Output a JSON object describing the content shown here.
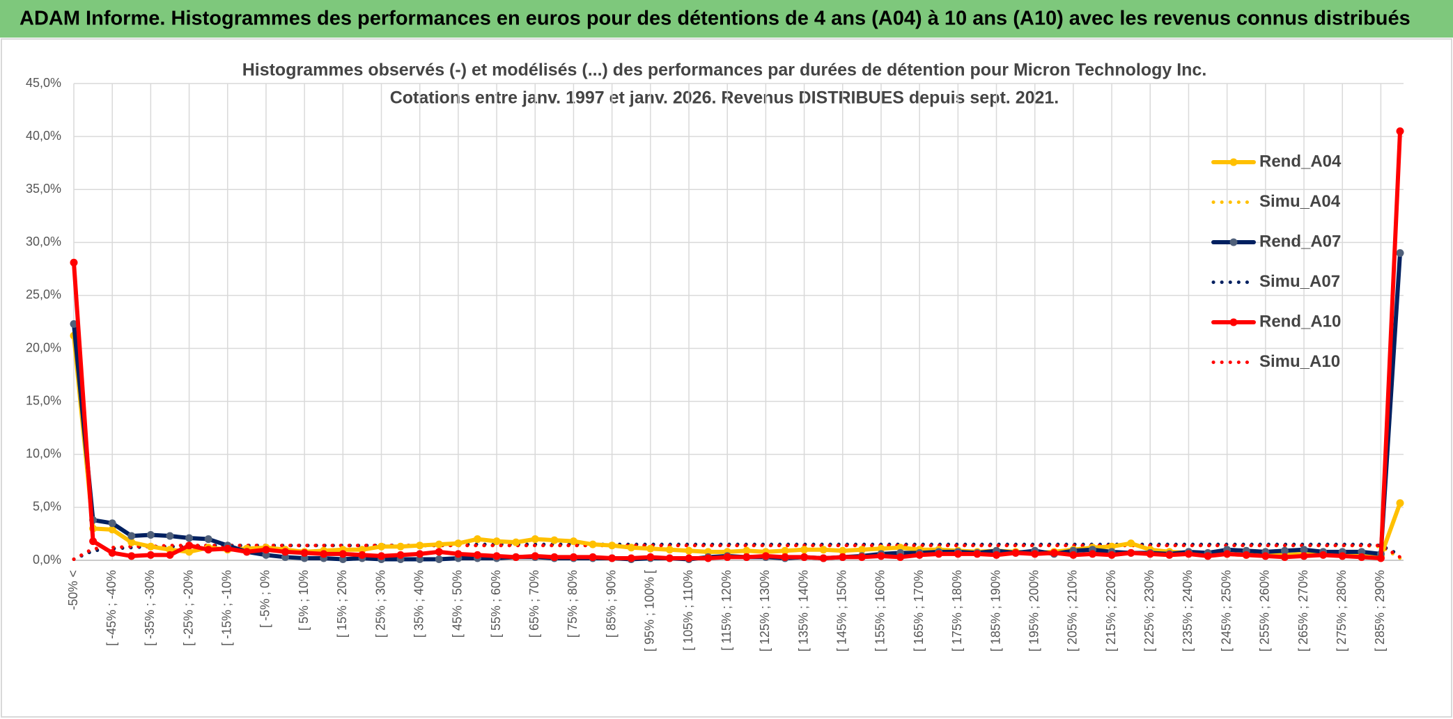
{
  "header": {
    "title": "ADAM Informe. Histogrammes des performances en euros pour des détentions de 4 ans (A04) à 10 ans (A10) avec les revenus connus distribués"
  },
  "chart_data": {
    "type": "line",
    "title": [
      "Histogrammes observés (-) et modélisés (...) des performances par durées de détention pour Micron Technology Inc.",
      "Cotations entre janv. 1997 et janv. 2026. Revenus DISTRIBUES depuis sept. 2021."
    ],
    "categories": [
      "-50% <",
      null,
      "[ -45% ; -40%",
      null,
      "[ -35% ; -30%",
      null,
      "[ -25% ; -20%",
      null,
      "[ -15% ; -10%",
      null,
      "[ -5% ; 0%",
      null,
      "[ 5% ; 10%",
      null,
      "[ 15% ; 20%",
      null,
      "[ 25% ; 30%",
      null,
      "[ 35% ; 40%",
      null,
      "[ 45% ; 50%",
      null,
      "[ 55% ; 60%",
      null,
      "[ 65% ; 70%",
      null,
      "[ 75% ; 80%",
      null,
      "[ 85% ; 90%",
      null,
      "[ 95% ; 100% [",
      null,
      "[ 105% ; 110%",
      null,
      "[ 115% ; 120%",
      null,
      "[ 125% ; 130%",
      null,
      "[ 135% ; 140%",
      null,
      "[ 145% ; 150%",
      null,
      "[ 155% ; 160%",
      null,
      "[ 165% ; 170%",
      null,
      "[ 175% ; 180%",
      null,
      "[ 185% ; 190%",
      null,
      "[ 195% ; 200%",
      null,
      "[ 205% ; 210%",
      null,
      "[ 215% ; 220%",
      null,
      "[ 225% ; 230%",
      null,
      "[ 235% ; 240%",
      null,
      "[ 245% ; 250%",
      null,
      "[ 255% ; 260%",
      null,
      "[ 265% ; 270%",
      null,
      "[ 275% ; 280%",
      null,
      "[ 285% ; 290%",
      null
    ],
    "series": [
      {
        "name": "Rend_A04",
        "color": "#ffc000",
        "style": "solid",
        "values": [
          21.2,
          3.0,
          2.9,
          1.7,
          1.3,
          1.0,
          0.8,
          1.2,
          1.0,
          1.1,
          1.2,
          1.0,
          0.8,
          0.9,
          1.0,
          1.0,
          1.3,
          1.3,
          1.4,
          1.5,
          1.6,
          2.0,
          1.8,
          1.7,
          2.0,
          1.9,
          1.8,
          1.5,
          1.4,
          1.2,
          1.1,
          1.0,
          0.9,
          0.8,
          0.8,
          0.9,
          0.8,
          0.9,
          1.0,
          1.0,
          0.9,
          1.0,
          1.1,
          1.2,
          1.0,
          1.0,
          0.9,
          0.8,
          0.9,
          0.8,
          0.7,
          0.8,
          1.0,
          1.2,
          1.3,
          1.6,
          1.0,
          0.8,
          0.7,
          0.6,
          0.6,
          0.5,
          0.6,
          0.5,
          0.6,
          0.6,
          0.5,
          0.5,
          0.4,
          5.4
        ]
      },
      {
        "name": "Simu_A04",
        "color": "#ffc000",
        "style": "dotted",
        "values": [
          0.1,
          1.0,
          1.2,
          1.3,
          1.3,
          1.3,
          1.4,
          1.4,
          1.4,
          1.4,
          1.4,
          1.4,
          1.4,
          1.4,
          1.4,
          1.4,
          1.4,
          1.4,
          1.4,
          1.4,
          1.4,
          1.4,
          1.4,
          1.4,
          1.4,
          1.4,
          1.4,
          1.4,
          1.4,
          1.4,
          1.4,
          1.4,
          1.4,
          1.4,
          1.4,
          1.4,
          1.4,
          1.4,
          1.4,
          1.4,
          1.4,
          1.4,
          1.4,
          1.4,
          1.4,
          1.4,
          1.4,
          1.4,
          1.4,
          1.4,
          1.4,
          1.4,
          1.4,
          1.4,
          1.4,
          1.4,
          1.4,
          1.4,
          1.4,
          1.4,
          1.4,
          1.4,
          1.4,
          1.4,
          1.4,
          1.4,
          1.4,
          1.4,
          1.3,
          0.2
        ]
      },
      {
        "name": "Rend_A07",
        "color": "#002060",
        "style": "solid",
        "values": [
          22.3,
          3.8,
          3.5,
          2.3,
          2.4,
          2.3,
          2.1,
          2.0,
          1.4,
          0.8,
          0.5,
          0.3,
          0.2,
          0.2,
          0.1,
          0.2,
          0.1,
          0.1,
          0.1,
          0.1,
          0.2,
          0.2,
          0.2,
          0.3,
          0.3,
          0.2,
          0.2,
          0.2,
          0.2,
          0.1,
          0.2,
          0.2,
          0.1,
          0.3,
          0.4,
          0.3,
          0.3,
          0.2,
          0.3,
          0.2,
          0.3,
          0.4,
          0.6,
          0.7,
          0.7,
          0.8,
          0.8,
          0.7,
          0.9,
          0.7,
          0.9,
          0.6,
          0.9,
          1.0,
          0.8,
          0.7,
          0.7,
          0.6,
          0.8,
          0.7,
          1.0,
          0.9,
          0.8,
          0.9,
          1.0,
          0.8,
          0.8,
          0.8,
          0.6,
          29.0
        ]
      },
      {
        "name": "Simu_A07",
        "color": "#002060",
        "style": "dotted",
        "values": [
          0.1,
          0.9,
          1.1,
          1.2,
          1.3,
          1.3,
          1.3,
          1.4,
          1.4,
          1.4,
          1.4,
          1.4,
          1.4,
          1.4,
          1.4,
          1.4,
          1.4,
          1.4,
          1.4,
          1.4,
          1.5,
          1.5,
          1.5,
          1.5,
          1.5,
          1.5,
          1.5,
          1.5,
          1.5,
          1.5,
          1.5,
          1.5,
          1.5,
          1.5,
          1.5,
          1.5,
          1.5,
          1.5,
          1.5,
          1.5,
          1.5,
          1.5,
          1.5,
          1.5,
          1.5,
          1.5,
          1.5,
          1.5,
          1.5,
          1.5,
          1.5,
          1.5,
          1.5,
          1.5,
          1.5,
          1.5,
          1.5,
          1.5,
          1.5,
          1.5,
          1.5,
          1.5,
          1.5,
          1.5,
          1.5,
          1.5,
          1.5,
          1.5,
          1.4,
          0.5
        ]
      },
      {
        "name": "Rend_A10",
        "color": "#ff0000",
        "style": "solid",
        "values": [
          28.1,
          1.8,
          0.7,
          0.4,
          0.5,
          0.5,
          1.4,
          1.0,
          1.1,
          0.8,
          1.0,
          0.8,
          0.7,
          0.6,
          0.6,
          0.5,
          0.4,
          0.5,
          0.6,
          0.8,
          0.6,
          0.5,
          0.4,
          0.3,
          0.4,
          0.3,
          0.3,
          0.3,
          0.2,
          0.2,
          0.3,
          0.2,
          0.2,
          0.2,
          0.3,
          0.3,
          0.4,
          0.3,
          0.3,
          0.2,
          0.3,
          0.3,
          0.4,
          0.3,
          0.5,
          0.6,
          0.6,
          0.6,
          0.5,
          0.7,
          0.6,
          0.7,
          0.5,
          0.6,
          0.5,
          0.7,
          0.6,
          0.5,
          0.6,
          0.4,
          0.6,
          0.5,
          0.4,
          0.3,
          0.4,
          0.5,
          0.4,
          0.3,
          0.2,
          40.5
        ]
      },
      {
        "name": "Simu_A10",
        "color": "#ff0000",
        "style": "dotted",
        "values": [
          0.1,
          1.1,
          1.2,
          1.3,
          1.3,
          1.4,
          1.4,
          1.4,
          1.4,
          1.4,
          1.4,
          1.4,
          1.4,
          1.4,
          1.4,
          1.4,
          1.4,
          1.4,
          1.4,
          1.4,
          1.4,
          1.4,
          1.4,
          1.4,
          1.4,
          1.4,
          1.4,
          1.4,
          1.4,
          1.4,
          1.4,
          1.4,
          1.4,
          1.4,
          1.4,
          1.4,
          1.4,
          1.4,
          1.4,
          1.4,
          1.4,
          1.4,
          1.4,
          1.4,
          1.4,
          1.4,
          1.4,
          1.4,
          1.4,
          1.4,
          1.4,
          1.4,
          1.4,
          1.4,
          1.4,
          1.4,
          1.4,
          1.4,
          1.4,
          1.4,
          1.4,
          1.4,
          1.4,
          1.4,
          1.4,
          1.4,
          1.4,
          1.4,
          1.4,
          0.3
        ]
      }
    ],
    "ylim": [
      0,
      45
    ],
    "yticks": [
      {
        "value": 0,
        "label": "0,0%"
      },
      {
        "value": 5,
        "label": "5,0%"
      },
      {
        "value": 10,
        "label": "10,0%"
      },
      {
        "value": 15,
        "label": "15,0%"
      },
      {
        "value": 20,
        "label": "20,0%"
      },
      {
        "value": 25,
        "label": "25,0%"
      },
      {
        "value": 30,
        "label": "30,0%"
      },
      {
        "value": 35,
        "label": "35,0%"
      },
      {
        "value": 40,
        "label": "40,0%"
      },
      {
        "value": 45,
        "label": "45,0%"
      }
    ],
    "grid": true,
    "legend": "right"
  }
}
